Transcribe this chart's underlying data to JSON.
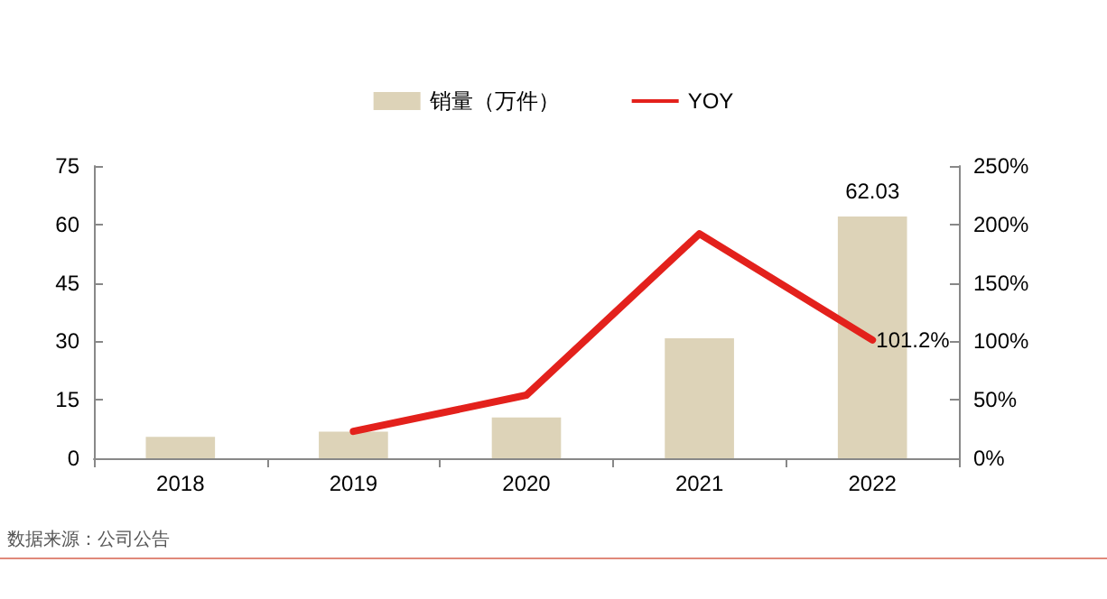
{
  "chart_data": {
    "type": "bar",
    "categories": [
      "2018",
      "2019",
      "2020",
      "2021",
      "2022"
    ],
    "series": [
      {
        "name": "销量（万件）",
        "color": "#ddd3b8",
        "values": [
          5.5,
          6.8,
          10.5,
          30.8,
          62.03
        ],
        "value_labels": [
          null,
          null,
          null,
          null,
          "62.03"
        ]
      },
      {
        "name": "YOY",
        "type": "line",
        "axis": "y2",
        "color": "#e3211c",
        "values": [
          null,
          23,
          54,
          192,
          101.2
        ],
        "value_labels": [
          null,
          null,
          null,
          null,
          "101.2%"
        ]
      }
    ],
    "ylim": [
      0,
      75
    ],
    "yticks": [
      0,
      15,
      30,
      45,
      60,
      75
    ],
    "y2lim": [
      0,
      250
    ],
    "y2ticks": [
      {
        "value": 0,
        "label": "0%"
      },
      {
        "value": 50,
        "label": "50%"
      },
      {
        "value": 100,
        "label": "100%"
      },
      {
        "value": 150,
        "label": "150%"
      },
      {
        "value": 200,
        "label": "200%"
      },
      {
        "value": 250,
        "label": "250%"
      }
    ],
    "legend": "top",
    "grid": false,
    "marker": "none",
    "annotations": [
      "数据来源：公司公告"
    ]
  }
}
